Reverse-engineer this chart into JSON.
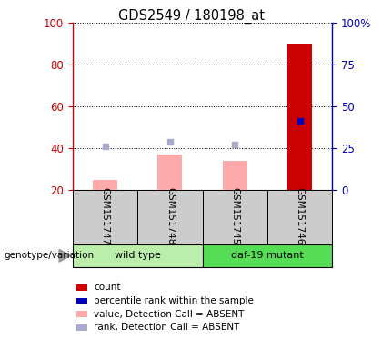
{
  "title": "GDS2549 / 180198_at",
  "samples": [
    "GSM151747",
    "GSM151748",
    "GSM151745",
    "GSM151746"
  ],
  "ylim_left": [
    20,
    100
  ],
  "ylim_right": [
    0,
    100
  ],
  "yticks_left": [
    20,
    40,
    60,
    80,
    100
  ],
  "yticks_right": [
    0,
    25,
    50,
    75,
    100
  ],
  "ytick_labels_right": [
    "0",
    "25",
    "50",
    "75",
    "100%"
  ],
  "bar_bottom": 20,
  "count_values": [
    0,
    0,
    0,
    90
  ],
  "percentile_rank_left": [
    null,
    null,
    null,
    53
  ],
  "value_absent": [
    25,
    37,
    34,
    null
  ],
  "rank_absent_left": [
    41,
    43,
    42,
    null
  ],
  "colors": {
    "count": "#cc0000",
    "percentile_rank": "#0000bb",
    "value_absent": "#ffaaaa",
    "rank_absent": "#aaaacc",
    "left_axis": "#cc0000",
    "right_axis": "#0000bb",
    "sample_bg": "#cccccc",
    "wildtype_bg": "#bbeeaa",
    "mutant_bg": "#55dd55"
  },
  "wildtype_label": "wild type",
  "mutant_label": "daf-19 mutant",
  "genotype_label": "genotype/variation",
  "legend_items": [
    "count",
    "percentile rank within the sample",
    "value, Detection Call = ABSENT",
    "rank, Detection Call = ABSENT"
  ],
  "legend_colors": [
    "#cc0000",
    "#0000bb",
    "#ffaaaa",
    "#aaaacc"
  ]
}
